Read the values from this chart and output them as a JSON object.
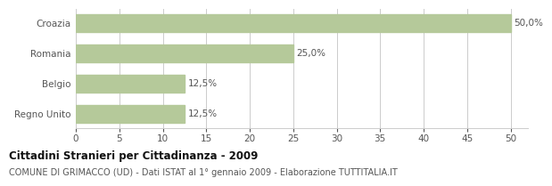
{
  "categories": [
    "Regno Unito",
    "Belgio",
    "Romania",
    "Croazia"
  ],
  "values": [
    12.5,
    12.5,
    25.0,
    50.0
  ],
  "bar_color": "#b5c99a",
  "value_labels": [
    "12,5%",
    "12,5%",
    "25,0%",
    "50,0%"
  ],
  "xlim": [
    0,
    52
  ],
  "xticks": [
    0,
    5,
    10,
    15,
    20,
    25,
    30,
    35,
    40,
    45,
    50
  ],
  "title_bold": "Cittadini Stranieri per Cittadinanza - 2009",
  "subtitle": "COMUNE DI GRIMACCO (UD) - Dati ISTAT al 1° gennaio 2009 - Elaborazione TUTTITALIA.IT",
  "background_color": "#ffffff",
  "grid_color": "#cccccc",
  "label_color": "#555555",
  "title_color": "#111111",
  "subtitle_color": "#555555",
  "title_fontsize": 8.5,
  "subtitle_fontsize": 7.0,
  "tick_fontsize": 7.5,
  "bar_label_fontsize": 7.5,
  "ylabel_fontsize": 7.5,
  "bar_height": 0.6
}
